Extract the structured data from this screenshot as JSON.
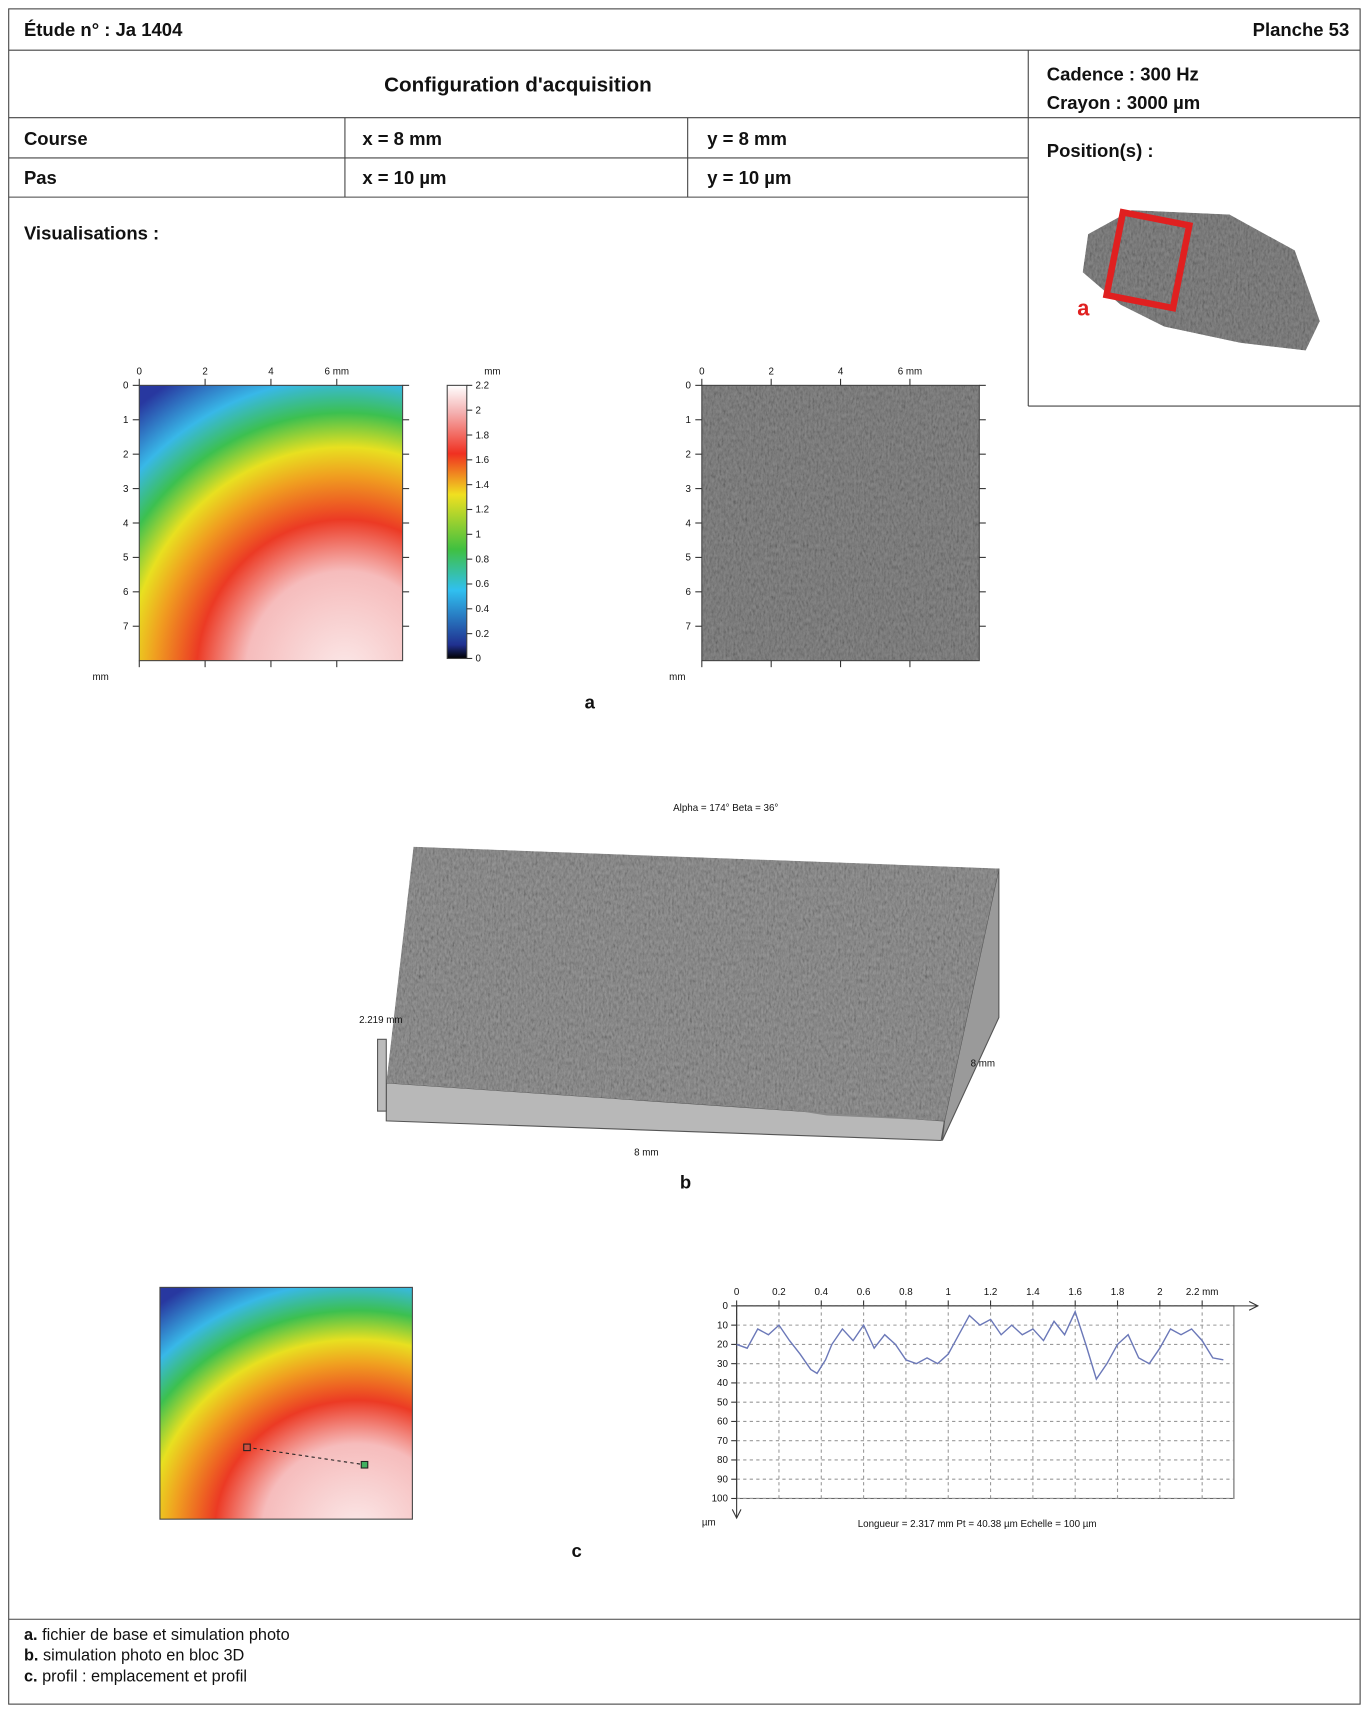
{
  "header": {
    "study": "Étude n° : Ja 1404",
    "plate": "Planche 53"
  },
  "acquisition": {
    "title": "Configuration d'acquisition",
    "rate": "Cadence : 300 Hz",
    "stylus": "Crayon : 3000 µm",
    "rows": [
      [
        "Course",
        "x = 8 mm",
        "y = 8 mm"
      ],
      [
        "Pas",
        "x = 10 µm",
        "y = 10 µm"
      ]
    ]
  },
  "position": {
    "title": "Position(s) :",
    "marker": "a"
  },
  "visualisations": {
    "title": "Visualisations :",
    "height_map": {
      "xlim": [
        0,
        8
      ],
      "ylim": [
        0,
        8
      ],
      "xticks": [
        0,
        2,
        4,
        {
          "value": 6,
          "label": "6 mm"
        }
      ],
      "yticks": [
        0,
        1,
        2,
        3,
        4,
        5,
        6,
        7
      ],
      "unit": "mm"
    },
    "colorbar": {
      "lim": [
        0,
        2.2
      ],
      "ticks": [
        0,
        0.2,
        0.4,
        0.6,
        0.8,
        1,
        1.2,
        1.4,
        1.6,
        1.8,
        2,
        2.2
      ],
      "unit": "mm"
    },
    "panel_a": "a",
    "block": {
      "angles": "Alpha = 174°     Beta = 36°",
      "height": "2.219 mm",
      "width": "8 mm",
      "depth": "8 mm",
      "label": "b"
    },
    "panel_c": "c"
  },
  "chart_data": {
    "type": "line",
    "x": [
      0,
      0.05,
      0.1,
      0.15,
      0.2,
      0.25,
      0.3,
      0.35,
      0.38,
      0.42,
      0.45,
      0.5,
      0.55,
      0.6,
      0.65,
      0.7,
      0.75,
      0.8,
      0.85,
      0.9,
      0.95,
      1.0,
      1.05,
      1.1,
      1.15,
      1.2,
      1.25,
      1.3,
      1.35,
      1.4,
      1.45,
      1.5,
      1.55,
      1.6,
      1.65,
      1.7,
      1.75,
      1.8,
      1.85,
      1.9,
      1.95,
      2.0,
      2.05,
      2.1,
      2.15,
      2.2,
      2.25,
      2.3
    ],
    "values": [
      20,
      22,
      12,
      15,
      10,
      18,
      25,
      33,
      35,
      28,
      20,
      12,
      18,
      10,
      22,
      15,
      20,
      28,
      30,
      27,
      30,
      25,
      15,
      5,
      10,
      7,
      15,
      10,
      15,
      12,
      18,
      8,
      15,
      3,
      20,
      38,
      30,
      20,
      15,
      27,
      30,
      22,
      12,
      15,
      12,
      18,
      27,
      28
    ],
    "color": "#6b78b8",
    "xlim": [
      0,
      2.35
    ],
    "ylim": [
      0,
      100
    ],
    "xticks": [
      0,
      0.2,
      0.4,
      0.6,
      0.8,
      1,
      1.2,
      1.4,
      1.6,
      1.8,
      2,
      {
        "value": 2.2,
        "label": "2.2 mm"
      }
    ],
    "yticks": [
      0,
      10,
      20,
      30,
      40,
      50,
      60,
      70,
      80,
      90,
      100
    ],
    "y_unit": "µm",
    "footer": "Longueur = 2.317 mm  Pt = 40.38 µm  Echelle = 100 µm",
    "grid": true
  },
  "captions": [
    {
      "label": "a.",
      "text": "fichier de base et simulation photo"
    },
    {
      "label": "b.",
      "text": "simulation photo en bloc 3D"
    },
    {
      "label": "c.",
      "text": "profil : emplacement et profil"
    }
  ]
}
